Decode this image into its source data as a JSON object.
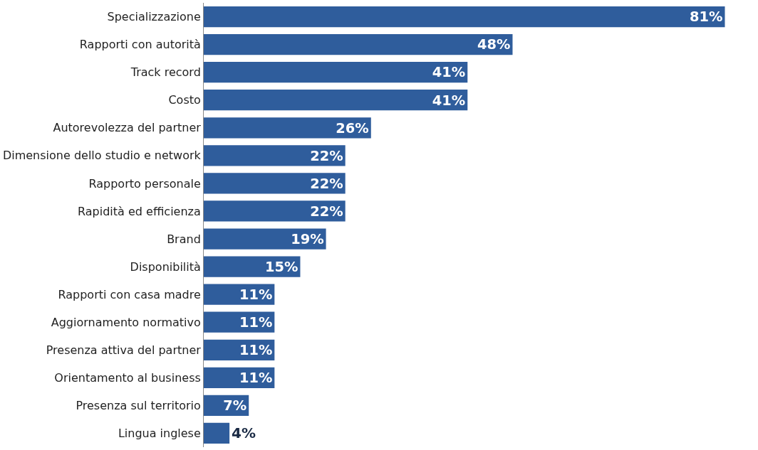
{
  "chart_data": {
    "type": "bar",
    "orientation": "horizontal",
    "categories": [
      "Specializzazione",
      "Rapporti con autorità",
      "Track record",
      "Costo",
      "Autorevolezza del partner",
      "Dimensione dello studio e network",
      "Rapporto personale",
      "Rapidità ed efficienza",
      "Brand",
      "Disponibilità",
      "Rapporti con casa madre",
      "Aggiornamento normativo",
      "Presenza attiva del partner",
      "Orientamento al business",
      "Presenza sul territorio",
      "Lingua inglese"
    ],
    "values": [
      81,
      48,
      41,
      41,
      26,
      22,
      22,
      22,
      19,
      15,
      11,
      11,
      11,
      11,
      7,
      4
    ],
    "value_labels": [
      "81%",
      "48%",
      "41%",
      "41%",
      "26%",
      "22%",
      "22%",
      "22%",
      "19%",
      "15%",
      "11%",
      "11%",
      "11%",
      "11%",
      "7%",
      "4%"
    ],
    "color": "#2f5d9c",
    "grid": false,
    "legend": false
  }
}
